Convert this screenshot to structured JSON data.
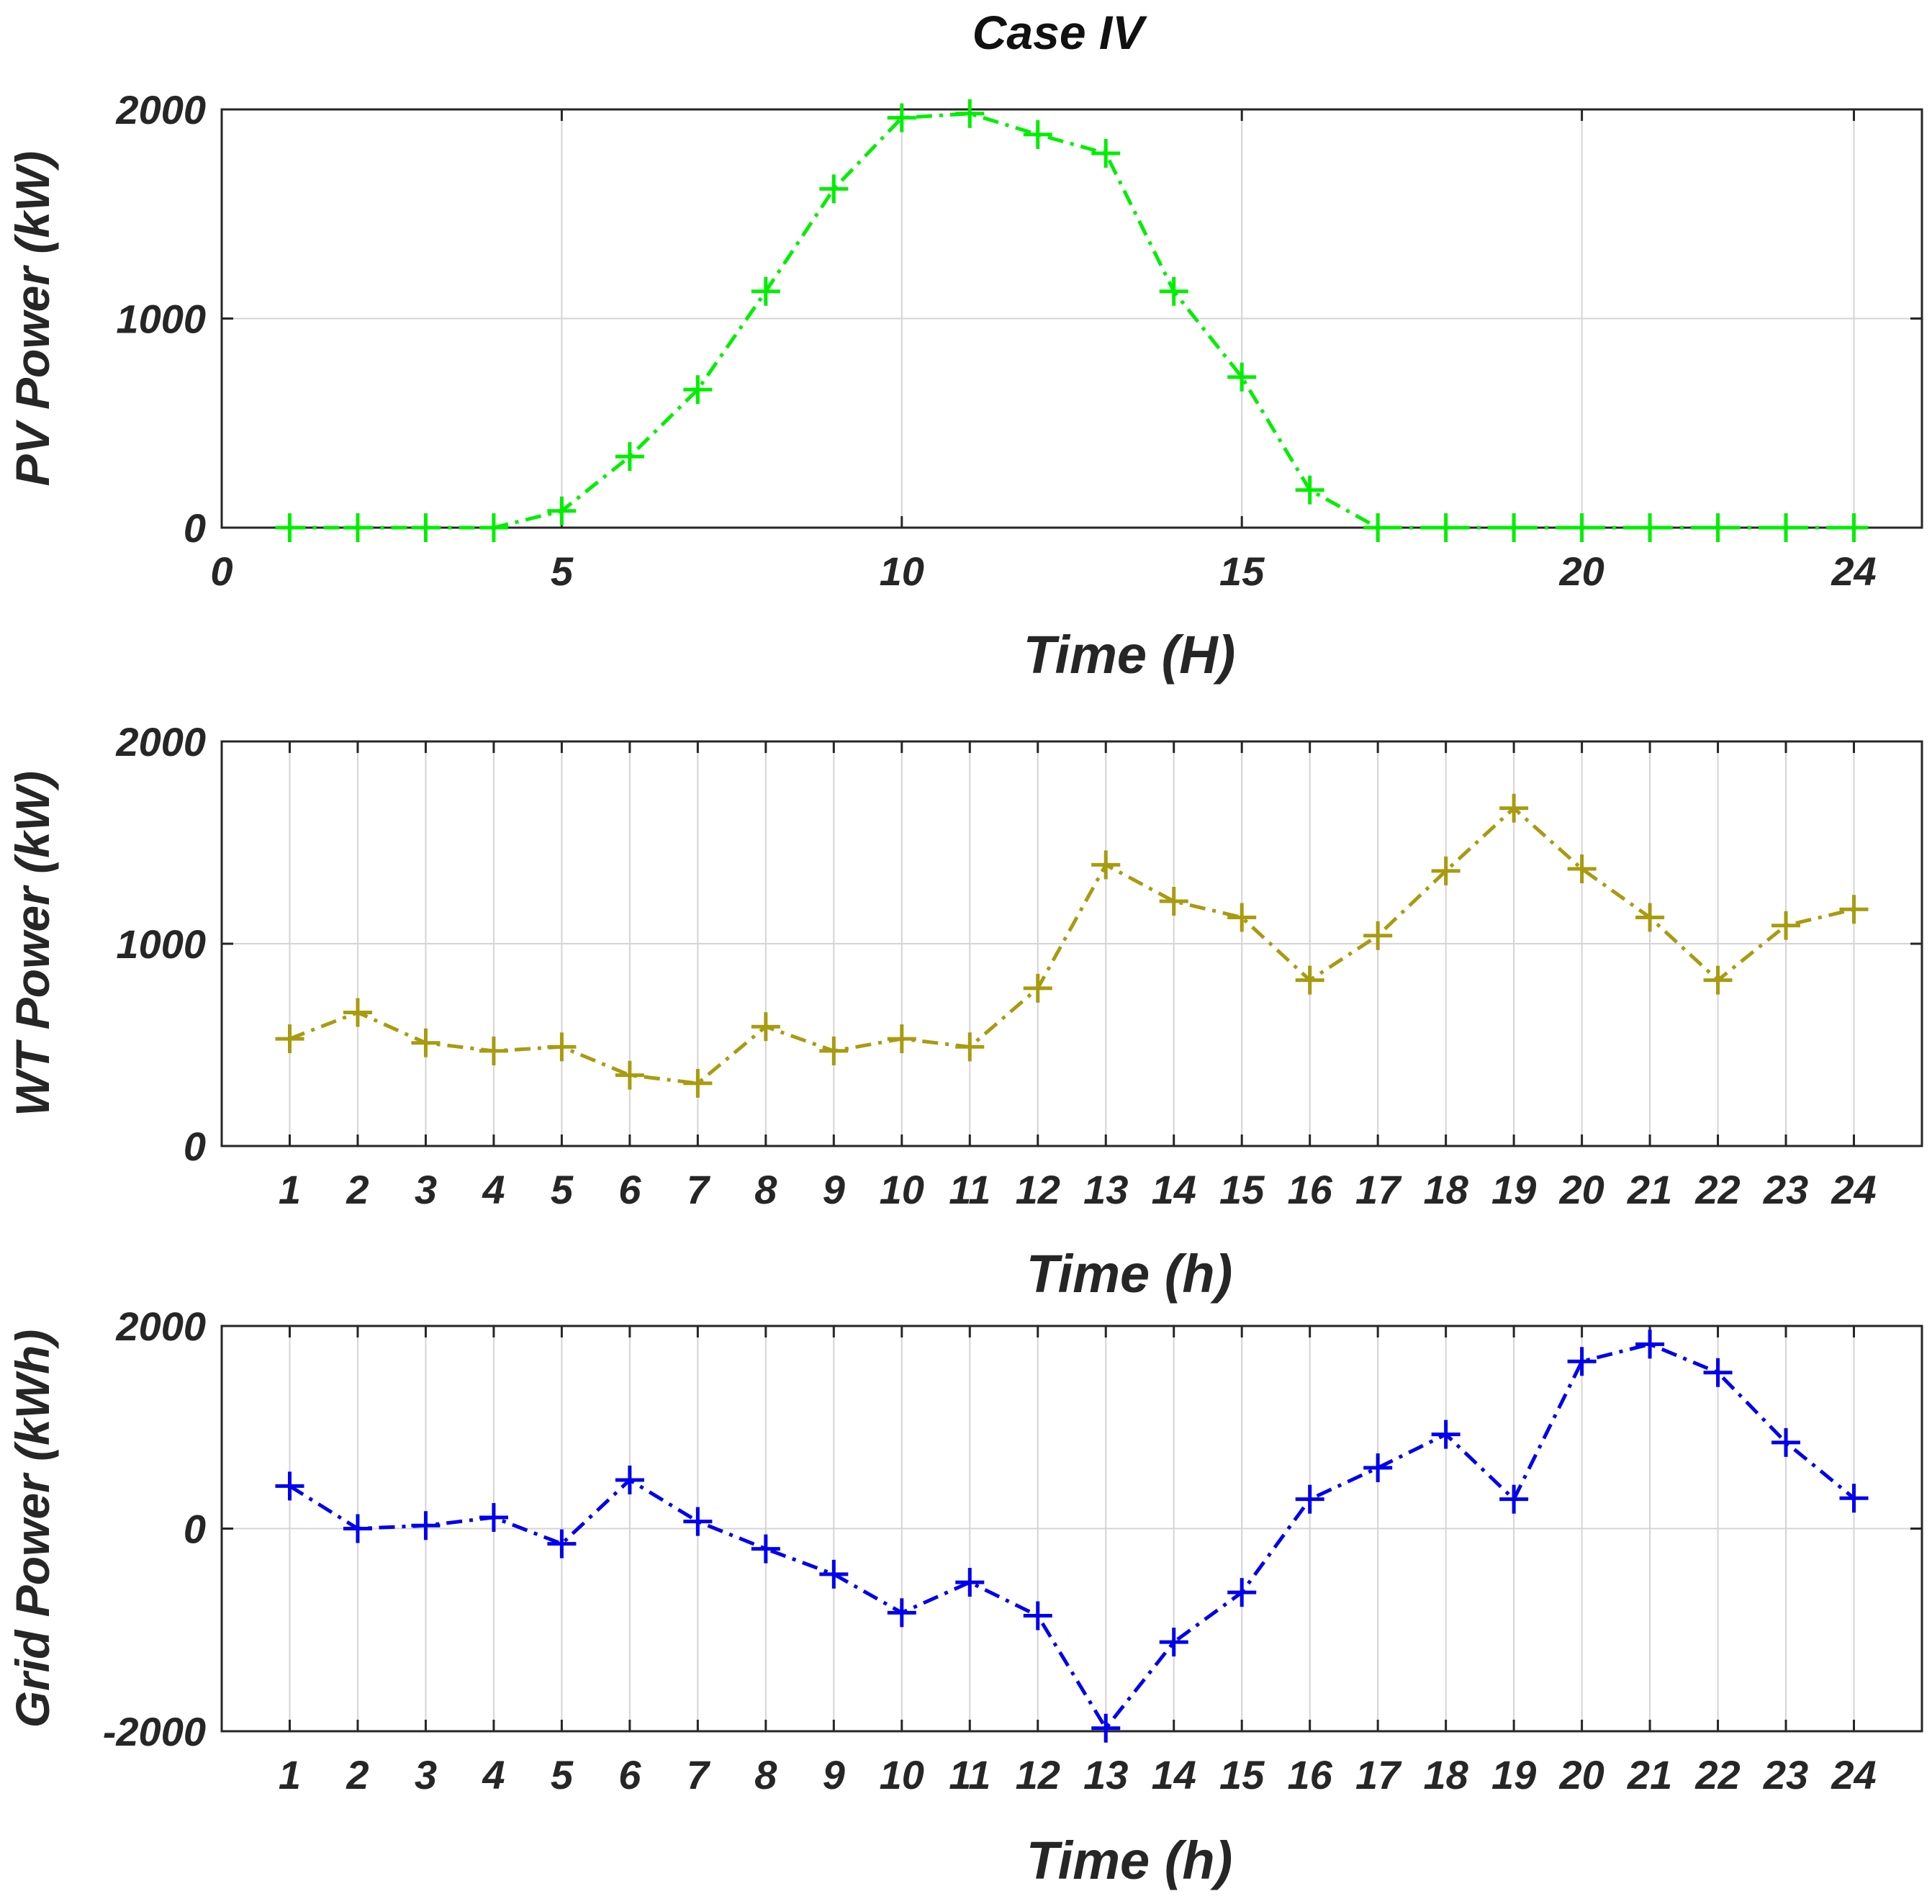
{
  "chart_data": [
    {
      "type": "line",
      "title": "Case IV",
      "xlabel": "Time (H)",
      "ylabel": "PV Power (kW)",
      "x": [
        1,
        2,
        3,
        4,
        5,
        6,
        7,
        8,
        9,
        10,
        11,
        12,
        13,
        14,
        15,
        16,
        17,
        18,
        19,
        20,
        21,
        22,
        23,
        24
      ],
      "series": [
        {
          "name": "PV Power",
          "color": "#00ee00",
          "values": [
            0,
            0,
            0,
            0,
            80,
            340,
            660,
            1130,
            1620,
            1960,
            1980,
            1880,
            1790,
            1130,
            720,
            180,
            0,
            0,
            0,
            0,
            0,
            0,
            0,
            0
          ]
        }
      ],
      "xticks": [
        0,
        5,
        10,
        15,
        20,
        24
      ],
      "xtick_labels": [
        "0",
        "5",
        "10",
        "15",
        "20",
        "24"
      ],
      "yticks": [
        0,
        1000,
        2000
      ],
      "ytick_labels": [
        "0",
        "1000",
        "2000"
      ],
      "xlim": [
        0,
        25
      ],
      "ylim": [
        0,
        2000
      ],
      "grid": true
    },
    {
      "type": "line",
      "title": "",
      "xlabel": "Time (h)",
      "ylabel": "WT Power (kW)",
      "x": [
        1,
        2,
        3,
        4,
        5,
        6,
        7,
        8,
        9,
        10,
        11,
        12,
        13,
        14,
        15,
        16,
        17,
        18,
        19,
        20,
        21,
        22,
        23,
        24
      ],
      "series": [
        {
          "name": "WT Power",
          "color": "#a89b10",
          "values": [
            530,
            660,
            510,
            470,
            490,
            350,
            310,
            590,
            470,
            530,
            490,
            780,
            1390,
            1210,
            1130,
            820,
            1040,
            1360,
            1670,
            1370,
            1130,
            820,
            1090,
            1170
          ]
        }
      ],
      "xticks": [
        1,
        2,
        3,
        4,
        5,
        6,
        7,
        8,
        9,
        10,
        11,
        12,
        13,
        14,
        15,
        16,
        17,
        18,
        19,
        20,
        21,
        22,
        23,
        24
      ],
      "xtick_labels": [
        "1",
        "2",
        "3",
        "4",
        "5",
        "6",
        "7",
        "8",
        "9",
        "10",
        "11",
        "12",
        "13",
        "14",
        "15",
        "16",
        "17",
        "18",
        "19",
        "20",
        "21",
        "22",
        "23",
        "24"
      ],
      "yticks": [
        0,
        1000,
        2000
      ],
      "ytick_labels": [
        "0",
        "1000",
        "2000"
      ],
      "xlim": [
        0,
        25
      ],
      "ylim": [
        0,
        2000
      ],
      "grid": true
    },
    {
      "type": "line",
      "title": "",
      "xlabel": "Time (h)",
      "ylabel": "Grid Power (kWh)",
      "x": [
        1,
        2,
        3,
        4,
        5,
        6,
        7,
        8,
        9,
        10,
        11,
        12,
        13,
        14,
        15,
        16,
        17,
        18,
        19,
        20,
        21,
        22,
        23,
        24
      ],
      "series": [
        {
          "name": "Grid Power",
          "color": "#0000ee",
          "values": [
            420,
            0,
            30,
            110,
            -150,
            480,
            70,
            -200,
            -450,
            -830,
            -530,
            -860,
            -1970,
            -1120,
            -630,
            290,
            600,
            930,
            290,
            1650,
            1820,
            1540,
            850,
            300
          ]
        }
      ],
      "xticks": [
        1,
        2,
        3,
        4,
        5,
        6,
        7,
        8,
        9,
        10,
        11,
        12,
        13,
        14,
        15,
        16,
        17,
        18,
        19,
        20,
        21,
        22,
        23,
        24
      ],
      "xtick_labels": [
        "1",
        "2",
        "3",
        "4",
        "5",
        "6",
        "7",
        "8",
        "9",
        "10",
        "11",
        "12",
        "13",
        "14",
        "15",
        "16",
        "17",
        "18",
        "19",
        "20",
        "21",
        "22",
        "23",
        "24"
      ],
      "yticks": [
        -2000,
        0,
        2000
      ],
      "ytick_labels": [
        "-2000",
        "0",
        "2000"
      ],
      "xlim": [
        0,
        25
      ],
      "ylim": [
        -2000,
        2000
      ],
      "grid": true
    }
  ]
}
